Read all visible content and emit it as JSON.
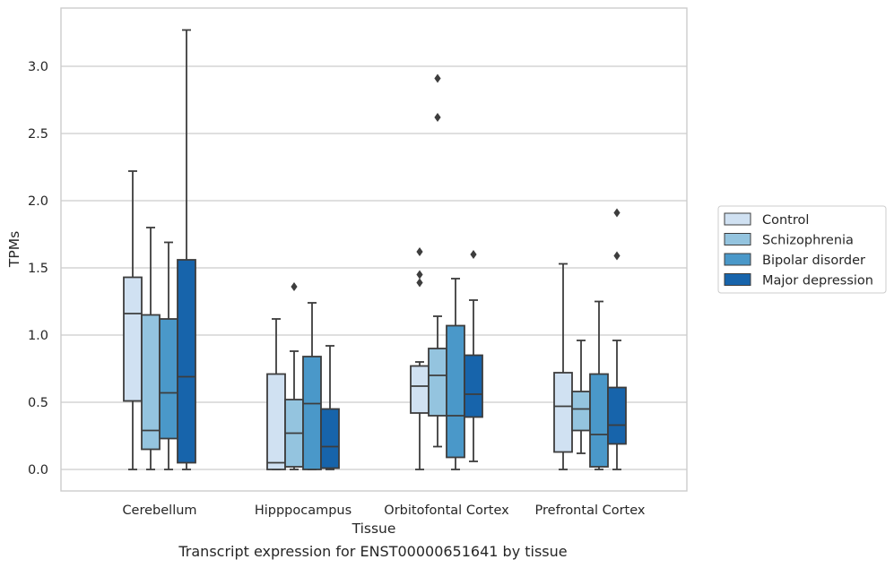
{
  "caption": "Transcript expression for ENST00000651641 by tissue",
  "colors": {
    "Control": "#d0e1f2",
    "Schizophrenia": "#94c4df",
    "Bipolar disorder": "#4a98c9",
    "Major depression": "#1764ab",
    "box_edge": "#3d3d3d",
    "grid": "#cccccc"
  },
  "chart_data": {
    "type": "box",
    "xlabel": "Tissue",
    "ylabel": "TPMs",
    "ylim": [
      -0.16,
      3.43
    ],
    "yticks": [
      0.0,
      0.5,
      1.0,
      1.5,
      2.0,
      2.5,
      3.0
    ],
    "ytick_labels": [
      "0.0",
      "0.5",
      "1.0",
      "1.5",
      "2.0",
      "2.5",
      "3.0"
    ],
    "grid": "horizontal",
    "legend_position": "right",
    "categories": [
      "Cerebellum",
      "Hipppocampus",
      "Orbitofontal Cortex",
      "Prefrontal Cortex"
    ],
    "series": [
      {
        "name": "Control",
        "boxes": [
          {
            "whislo": 0.0,
            "q1": 0.51,
            "med": 1.16,
            "q3": 1.43,
            "whishi": 2.22,
            "fliers": []
          },
          {
            "whislo": 0.0,
            "q1": 0.0,
            "med": 0.05,
            "q3": 0.71,
            "whishi": 1.12,
            "fliers": []
          },
          {
            "whislo": 0.0,
            "q1": 0.42,
            "med": 0.62,
            "q3": 0.77,
            "whishi": 0.8,
            "fliers": [
              1.39,
              1.45,
              1.62
            ]
          },
          {
            "whislo": 0.0,
            "q1": 0.13,
            "med": 0.47,
            "q3": 0.72,
            "whishi": 1.53,
            "fliers": []
          }
        ]
      },
      {
        "name": "Schizophrenia",
        "boxes": [
          {
            "whislo": 0.0,
            "q1": 0.15,
            "med": 0.29,
            "q3": 1.15,
            "whishi": 1.8,
            "fliers": []
          },
          {
            "whislo": 0.0,
            "q1": 0.02,
            "med": 0.27,
            "q3": 0.52,
            "whishi": 0.88,
            "fliers": [
              1.36
            ]
          },
          {
            "whislo": 0.17,
            "q1": 0.4,
            "med": 0.7,
            "q3": 0.9,
            "whishi": 1.14,
            "fliers": [
              2.62,
              2.91
            ]
          },
          {
            "whislo": 0.12,
            "q1": 0.29,
            "med": 0.45,
            "q3": 0.58,
            "whishi": 0.96,
            "fliers": []
          }
        ]
      },
      {
        "name": "Bipolar disorder",
        "boxes": [
          {
            "whislo": 0.0,
            "q1": 0.23,
            "med": 0.57,
            "q3": 1.12,
            "whishi": 1.69,
            "fliers": []
          },
          {
            "whislo": 0.0,
            "q1": 0.0,
            "med": 0.49,
            "q3": 0.84,
            "whishi": 1.24,
            "fliers": []
          },
          {
            "whislo": 0.0,
            "q1": 0.09,
            "med": 0.4,
            "q3": 1.07,
            "whishi": 1.42,
            "fliers": []
          },
          {
            "whislo": 0.0,
            "q1": 0.02,
            "med": 0.26,
            "q3": 0.71,
            "whishi": 1.25,
            "fliers": []
          }
        ]
      },
      {
        "name": "Major depression",
        "boxes": [
          {
            "whislo": 0.0,
            "q1": 0.05,
            "med": 0.69,
            "q3": 1.56,
            "whishi": 3.27,
            "fliers": []
          },
          {
            "whislo": 0.0,
            "q1": 0.01,
            "med": 0.17,
            "q3": 0.45,
            "whishi": 0.92,
            "fliers": []
          },
          {
            "whislo": 0.06,
            "q1": 0.39,
            "med": 0.56,
            "q3": 0.85,
            "whishi": 1.26,
            "fliers": [
              1.6
            ]
          },
          {
            "whislo": 0.0,
            "q1": 0.19,
            "med": 0.33,
            "q3": 0.61,
            "whishi": 0.96,
            "fliers": [
              1.59,
              1.91
            ]
          }
        ]
      }
    ]
  }
}
